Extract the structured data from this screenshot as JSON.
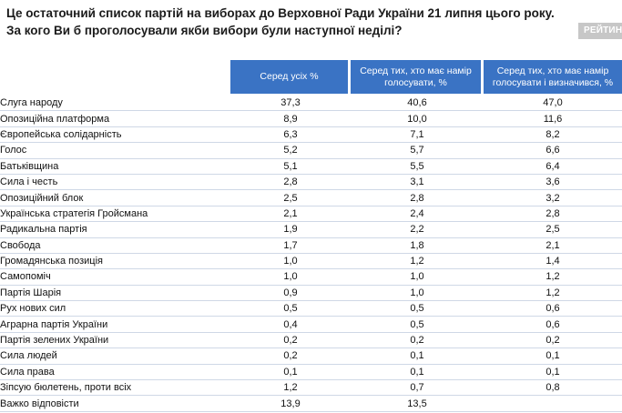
{
  "question": {
    "line1": "Це остаточний список партій на виборах до Верховної Ради України 21 липня цього року.",
    "line2": "За кого Ви б проголосували якби вибори були наступної неділі?"
  },
  "brand": "РЕЙТИНГ",
  "chart_data": {
    "type": "table",
    "columns": [
      "",
      "Серед усіх %",
      "Серед тих, хто має намір голосувати, %",
      "Серед тих, хто має намір голосувати і визначився, %"
    ],
    "rows": [
      [
        "Слуга народу",
        "37,3",
        "40,6",
        "47,0"
      ],
      [
        "Опозиційна платформа",
        "8,9",
        "10,0",
        "11,6"
      ],
      [
        "Європейська солідарність",
        "6,3",
        "7,1",
        "8,2"
      ],
      [
        "Голос",
        "5,2",
        "5,7",
        "6,6"
      ],
      [
        "Батьківщина",
        "5,1",
        "5,5",
        "6,4"
      ],
      [
        "Сила і честь",
        "2,8",
        "3,1",
        "3,6"
      ],
      [
        "Опозиційний блок",
        "2,5",
        "2,8",
        "3,2"
      ],
      [
        "Українська стратегія Гройсмана",
        "2,1",
        "2,4",
        "2,8"
      ],
      [
        "Радикальна партія",
        "1,9",
        "2,2",
        "2,5"
      ],
      [
        "Свобода",
        "1,7",
        "1,8",
        "2,1"
      ],
      [
        "Громадянська позиція",
        "1,0",
        "1,2",
        "1,4"
      ],
      [
        "Самопоміч",
        "1,0",
        "1,0",
        "1,2"
      ],
      [
        "Партія Шарія",
        "0,9",
        "1,0",
        "1,2"
      ],
      [
        "Рух нових сил",
        "0,5",
        "0,5",
        "0,6"
      ],
      [
        "Аграрна партія України",
        "0,4",
        "0,5",
        "0,6"
      ],
      [
        "Партія зелених України",
        "0,2",
        "0,2",
        "0,2"
      ],
      [
        "Сила людей",
        "0,2",
        "0,1",
        "0,1"
      ],
      [
        "Сила права",
        "0,1",
        "0,1",
        "0,1"
      ],
      [
        "Зіпсую бюлетень, проти всіх",
        "1,2",
        "0,7",
        "0,8"
      ],
      [
        "Важко відповісти",
        "13,9",
        "13,5",
        ""
      ]
    ]
  }
}
